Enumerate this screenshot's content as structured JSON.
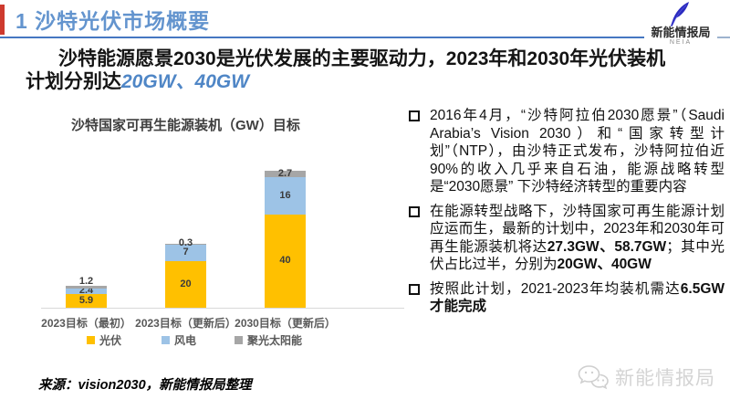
{
  "header": {
    "title": "1 沙特光伏市场概要",
    "logo": {
      "name": "新能情报局",
      "sub": "NEIA"
    }
  },
  "headline": {
    "segments": [
      {
        "text": "沙特能源愿景2030是光伏发展的主要驱动力，2023年和2030年光伏装机计划分别达",
        "style": "normal"
      },
      {
        "text": "20GW、40GW",
        "style": "accent"
      }
    ]
  },
  "chart_data": {
    "type": "bar",
    "stacked": true,
    "title": "沙特国家可再生能源装机（GW）目标",
    "unit": "GW",
    "categories": [
      "2023目标（最初）",
      "2023目标（更新后）",
      "2030目标（更新后）"
    ],
    "series": [
      {
        "name": "光伏",
        "color": "#FFC000",
        "values": [
          5.9,
          20,
          40
        ]
      },
      {
        "name": "风电",
        "color": "#9DC3E6",
        "values": [
          2.4,
          7,
          16
        ]
      },
      {
        "name": "聚光太阳能",
        "color": "#A6A6A6",
        "values": [
          1.2,
          0.3,
          2.7
        ]
      }
    ],
    "totals": [
      9.5,
      27.3,
      58.7
    ],
    "ylim": [
      0,
      60
    ],
    "grid": false,
    "legend_position": "bottom"
  },
  "bullets": [
    {
      "segments": [
        {
          "text": "2016年4月，“沙特阿拉伯2030愿景”（Saudi Arabia’s Vision 2030）和“国家转型计划”（NTP），由沙特正式发布，沙特阿拉伯近90%的收入几乎来自石油，能源战略转型是“2030愿景” 下沙特经济转型的重要内容",
          "bold": false
        }
      ]
    },
    {
      "segments": [
        {
          "text": "在能源转型战略下，沙特国家可再生能源计划应运而生，最新的计划中，2023年和2030年可再生能源装机将达",
          "bold": false
        },
        {
          "text": "27.3GW、58.7GW",
          "bold": true
        },
        {
          "text": "；其中光伏占比过半，分别为",
          "bold": false
        },
        {
          "text": "20GW、40GW",
          "bold": true
        }
      ]
    },
    {
      "segments": [
        {
          "text": "按照此计划，2021-2023年均装机需达",
          "bold": false
        },
        {
          "text": "6.5GW才能完成",
          "bold": true
        }
      ]
    }
  ],
  "footer": {
    "source": "来源：vision2030，新能情报局整理",
    "watermark": "新能情报局"
  },
  "colors": {
    "title_blue": "#6394CE",
    "accent_red": "#CE3A2E",
    "rule_blue": "#4577C2",
    "headline_accent": "#4F86C6",
    "watermark_gray": "#D4D4D4"
  }
}
